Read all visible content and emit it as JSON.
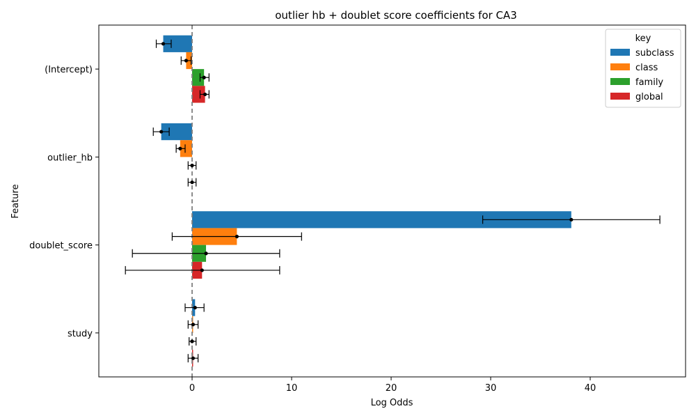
{
  "chart_data": {
    "type": "bar",
    "orientation": "horizontal",
    "title": "outlier hb + doublet score coefficients for CA3",
    "xlabel": "Log Odds",
    "ylabel": "Feature",
    "categories": [
      "(Intercept)",
      "outlier_hb",
      "doublet_score",
      "study"
    ],
    "xlim": [
      -9.3,
      49.6
    ],
    "xticks": [
      0,
      10,
      20,
      30,
      40
    ],
    "reference_line": {
      "x": 0,
      "style": "dashed",
      "color": "#7f7f7f"
    },
    "grid": false,
    "legend": {
      "title": "key",
      "position": "top-right"
    },
    "series": [
      {
        "name": "subclass",
        "color": "#1f77b4",
        "values": [
          -2.9,
          -3.1,
          38.1,
          0.3
        ],
        "ci": [
          [
            -3.6,
            -2.1
          ],
          [
            -3.9,
            -2.3
          ],
          [
            29.2,
            47.0
          ],
          [
            -0.7,
            1.2
          ]
        ]
      },
      {
        "name": "class",
        "color": "#ff7f0e",
        "values": [
          -0.6,
          -1.2,
          4.5,
          0.1
        ],
        "ci": [
          [
            -1.1,
            -0.1
          ],
          [
            -1.6,
            -0.7
          ],
          [
            -2.0,
            11.0
          ],
          [
            -0.4,
            0.6
          ]
        ]
      },
      {
        "name": "family",
        "color": "#2ca02c",
        "values": [
          1.2,
          0.0,
          1.4,
          0.0
        ],
        "ci": [
          [
            0.8,
            1.7
          ],
          [
            -0.4,
            0.4
          ],
          [
            -6.0,
            8.8
          ],
          [
            -0.3,
            0.4
          ]
        ]
      },
      {
        "name": "global",
        "color": "#d62728",
        "values": [
          1.3,
          0.0,
          1.0,
          0.1
        ],
        "ci": [
          [
            0.8,
            1.7
          ],
          [
            -0.4,
            0.4
          ],
          [
            -6.7,
            8.8
          ],
          [
            -0.4,
            0.6
          ]
        ]
      }
    ]
  }
}
